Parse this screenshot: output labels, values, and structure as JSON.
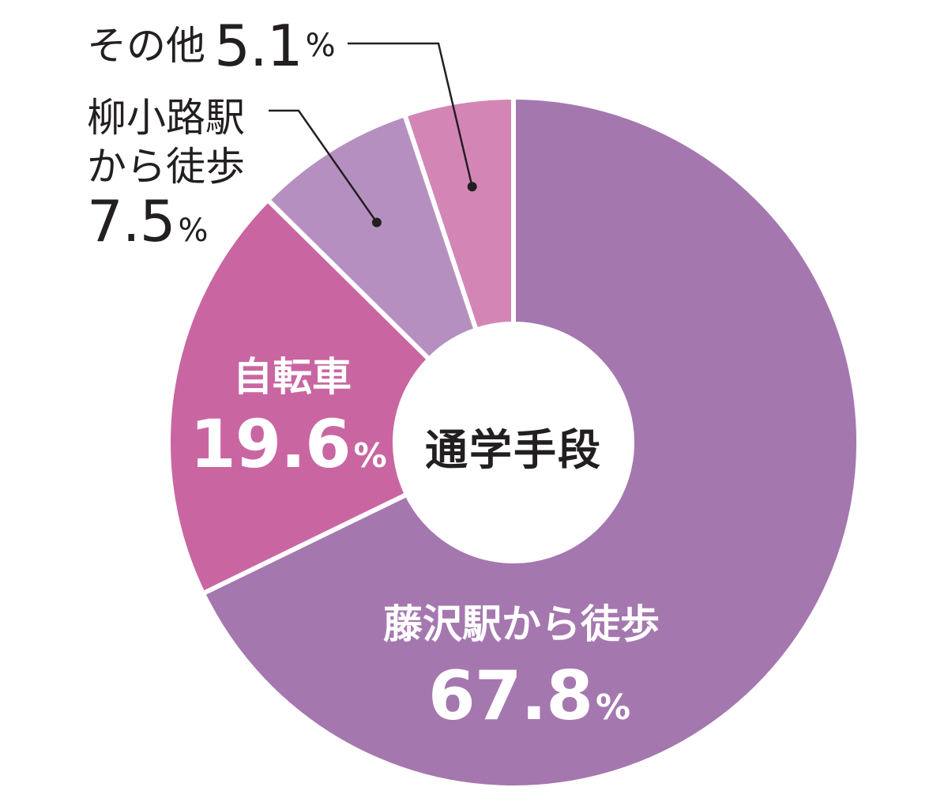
{
  "chart_data": {
    "type": "pie",
    "title": "通学手段",
    "unit": "%",
    "slices": [
      {
        "label": "藤沢駅から徒歩",
        "label_lines": [
          "藤沢駅から徒歩"
        ],
        "value": 67.8,
        "value_text": "67.8",
        "color": "#a577af"
      },
      {
        "label": "自転車",
        "label_lines": [
          "自転車"
        ],
        "value": 19.6,
        "value_text": "19.6",
        "color": "#c966a2"
      },
      {
        "label": "柳小路駅から徒歩",
        "label_lines": [
          "柳小路駅",
          "から徒歩"
        ],
        "value": 7.5,
        "value_text": "7.5",
        "color": "#b68fc1"
      },
      {
        "label": "その他",
        "label_lines": [
          "その他"
        ],
        "value": 5.1,
        "value_text": "5.1",
        "color": "#d386b6"
      }
    ]
  }
}
